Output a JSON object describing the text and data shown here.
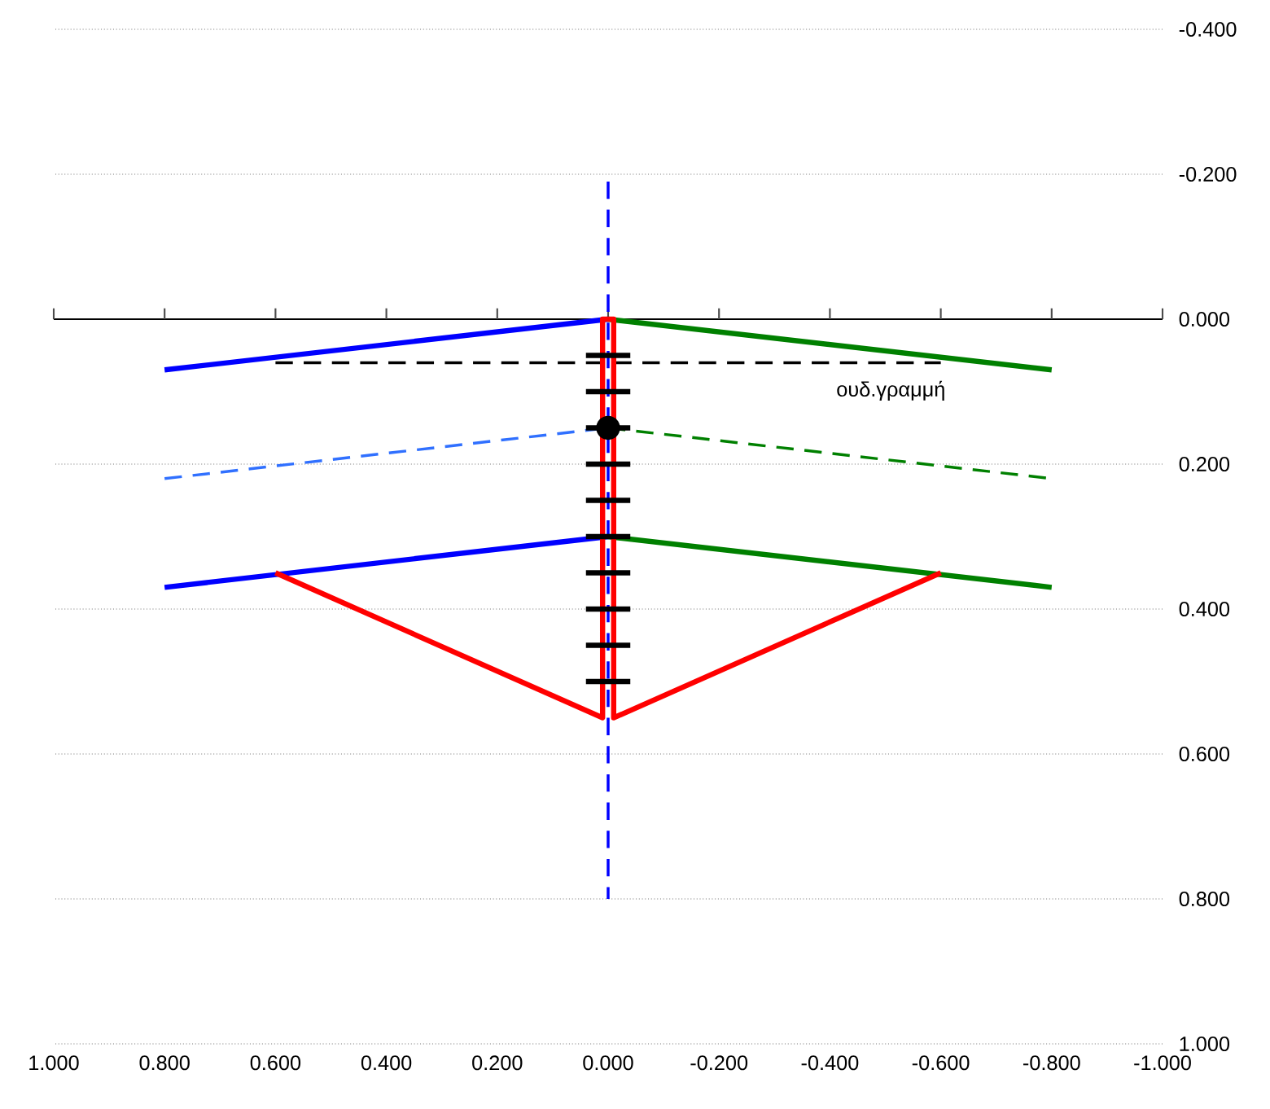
{
  "chart_data": {
    "type": "line",
    "xlim": [
      1.0,
      -1.0
    ],
    "ylim": [
      1.0,
      -0.4
    ],
    "xticks": [
      {
        "value": 1.0,
        "label": "1.000"
      },
      {
        "value": 0.8,
        "label": "0.800"
      },
      {
        "value": 0.6,
        "label": "0.600"
      },
      {
        "value": 0.4,
        "label": "0.400"
      },
      {
        "value": 0.2,
        "label": "0.200"
      },
      {
        "value": 0.0,
        "label": "0.000"
      },
      {
        "value": -0.2,
        "label": "-0.200"
      },
      {
        "value": -0.4,
        "label": "-0.400"
      },
      {
        "value": -0.6,
        "label": "-0.600"
      },
      {
        "value": -0.8,
        "label": "-0.800"
      },
      {
        "value": -1.0,
        "label": "-1.000"
      }
    ],
    "yticks": [
      {
        "value": -0.4,
        "label": "-0.400"
      },
      {
        "value": -0.2,
        "label": "-0.200"
      },
      {
        "value": 0.0,
        "label": "0.000"
      },
      {
        "value": 0.2,
        "label": "0.200"
      },
      {
        "value": 0.4,
        "label": "0.400"
      },
      {
        "value": 0.6,
        "label": "0.600"
      },
      {
        "value": 0.8,
        "label": "0.800"
      },
      {
        "value": 1.0,
        "label": "1.000"
      }
    ],
    "grid": "y",
    "annotations": [
      {
        "text": "ουδ.γραμμή",
        "x": -0.51,
        "y": 0.06
      }
    ],
    "series": [
      {
        "color": "#0000ff",
        "x": [
          0.8,
          0.0
        ],
        "values": [
          0.07,
          0.0
        ],
        "line_style": "solid"
      },
      {
        "color": "#008000",
        "x": [
          0.0,
          -0.8
        ],
        "values": [
          0.0,
          0.07
        ],
        "line_style": "solid"
      },
      {
        "color": "#000000",
        "x": [
          0.6,
          -0.6
        ],
        "values": [
          0.06,
          0.06
        ],
        "line_style": "dashed"
      },
      {
        "color": "#3070ff",
        "x": [
          0.8,
          0.0
        ],
        "values": [
          0.22,
          0.15
        ],
        "line_style": "dashed"
      },
      {
        "color": "#008000",
        "x": [
          0.0,
          -0.8
        ],
        "values": [
          0.15,
          0.22
        ],
        "line_style": "dashed"
      },
      {
        "color": "#0000ff",
        "x": [
          0.8,
          0.0
        ],
        "values": [
          0.37,
          0.3
        ],
        "line_style": "solid"
      },
      {
        "color": "#008000",
        "x": [
          0.0,
          -0.8
        ],
        "values": [
          0.3,
          0.37
        ],
        "line_style": "solid"
      },
      {
        "color": "#ff0000",
        "x": [
          0.6,
          0.01,
          0.01,
          -0.01,
          -0.01,
          -0.6
        ],
        "values": [
          0.35,
          0.55,
          0.0,
          0.0,
          0.55,
          0.35
        ],
        "line_style": "solid"
      },
      {
        "color": "#0000ff",
        "x": [
          0.0,
          0.0
        ],
        "values": [
          -0.19,
          0.8
        ],
        "line_style": "dashed"
      },
      {
        "color": "#000000",
        "x": [
          0.04,
          -0.04
        ],
        "values": [
          0.05,
          0.05
        ],
        "line_style": "solid"
      },
      {
        "color": "#000000",
        "x": [
          0.04,
          -0.04
        ],
        "values": [
          0.1,
          0.1
        ],
        "line_style": "solid"
      },
      {
        "color": "#000000",
        "x": [
          0.04,
          -0.04
        ],
        "values": [
          0.15,
          0.15
        ],
        "line_style": "solid"
      },
      {
        "color": "#000000",
        "x": [
          0.04,
          -0.04
        ],
        "values": [
          0.2,
          0.2
        ],
        "line_style": "solid"
      },
      {
        "color": "#000000",
        "x": [
          0.04,
          -0.04
        ],
        "values": [
          0.25,
          0.25
        ],
        "line_style": "solid"
      },
      {
        "color": "#000000",
        "x": [
          0.04,
          -0.04
        ],
        "values": [
          0.3,
          0.3
        ],
        "line_style": "solid"
      },
      {
        "color": "#000000",
        "x": [
          0.04,
          -0.04
        ],
        "values": [
          0.35,
          0.35
        ],
        "line_style": "solid"
      },
      {
        "color": "#000000",
        "x": [
          0.04,
          -0.04
        ],
        "values": [
          0.4,
          0.4
        ],
        "line_style": "solid"
      },
      {
        "color": "#000000",
        "x": [
          0.04,
          -0.04
        ],
        "values": [
          0.45,
          0.45
        ],
        "line_style": "solid"
      },
      {
        "color": "#000000",
        "x": [
          0.04,
          -0.04
        ],
        "values": [
          0.5,
          0.5
        ],
        "line_style": "solid"
      },
      {
        "type": "scatter",
        "color": "#000000",
        "x": [
          0.0
        ],
        "values": [
          0.15
        ],
        "marker": "circle"
      }
    ]
  }
}
